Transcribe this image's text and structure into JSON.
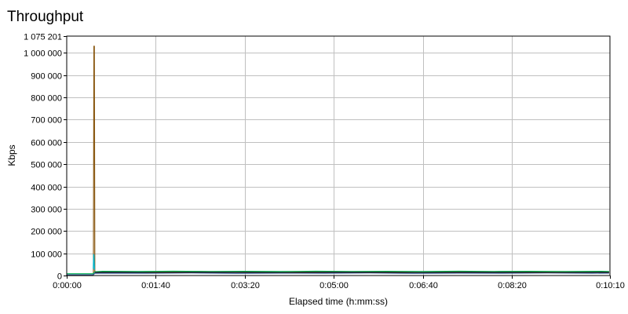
{
  "chart_data": {
    "type": "line",
    "title": "Throughput",
    "xlabel": "Elapsed time (h:mm:ss)",
    "ylabel": "Kbps",
    "x_unit": "seconds",
    "xlim": [
      0,
      610
    ],
    "ylim": [
      0,
      1075201
    ],
    "grid": true,
    "legend": "none",
    "x_ticks": [
      {
        "value": 0,
        "label": "0:00:00"
      },
      {
        "value": 100,
        "label": "0:01:40"
      },
      {
        "value": 200,
        "label": "0:03:20"
      },
      {
        "value": 300,
        "label": "0:05:00"
      },
      {
        "value": 400,
        "label": "0:06:40"
      },
      {
        "value": 500,
        "label": "0:08:20"
      },
      {
        "value": 610,
        "label": "0:10:10"
      }
    ],
    "y_ticks": [
      {
        "value": 0,
        "label": "0"
      },
      {
        "value": 100000,
        "label": "100 000"
      },
      {
        "value": 200000,
        "label": "200 000"
      },
      {
        "value": 300000,
        "label": "300 000"
      },
      {
        "value": 400000,
        "label": "400 000"
      },
      {
        "value": 500000,
        "label": "500 000"
      },
      {
        "value": 600000,
        "label": "600 000"
      },
      {
        "value": 700000,
        "label": "700 000"
      },
      {
        "value": 800000,
        "label": "800 000"
      },
      {
        "value": 900000,
        "label": "900 000"
      },
      {
        "value": 1000000,
        "label": "1 000 000"
      },
      {
        "value": 1075201,
        "label": "1 075 201"
      }
    ],
    "series": [
      {
        "color": "#8b5a14",
        "x": [
          0,
          30,
          30.5,
          31,
          31.6,
          32,
          40,
          60,
          100,
          150,
          200,
          250,
          300,
          350,
          400,
          450,
          500,
          550,
          600,
          609
        ],
        "y": [
          0,
          0,
          1030000,
          1030000,
          15000,
          16000,
          16500,
          17000,
          16000,
          17500,
          16500,
          17000,
          16000,
          17500,
          16500,
          17000,
          16500,
          17500,
          16500,
          17000
        ]
      },
      {
        "color": "#00b050",
        "x": [
          0,
          29.5,
          30,
          31.6,
          40,
          80,
          120,
          160,
          200,
          240,
          280,
          320,
          360,
          400,
          440,
          480,
          520,
          560,
          600,
          609
        ],
        "y": [
          8000,
          8000,
          9000,
          17000,
          19000,
          18000,
          19500,
          18500,
          19000,
          18000,
          19500,
          18500,
          19000,
          18000,
          19500,
          18500,
          19000,
          18500,
          19000,
          18500
        ]
      },
      {
        "color": "#2f5597",
        "x": [
          0,
          29.5,
          31.6,
          40,
          90,
          140,
          190,
          240,
          290,
          340,
          390,
          440,
          490,
          540,
          590,
          609
        ],
        "y": [
          3000,
          3000,
          10000,
          11000,
          10500,
          11500,
          10000,
          11000,
          10500,
          11500,
          10000,
          11000,
          10500,
          11500,
          10500,
          11000
        ]
      },
      {
        "color": "#00b8d4",
        "x": [
          29.8,
          30.3,
          30.6,
          31.2
        ],
        "y": [
          30000,
          95000,
          90000,
          25000
        ]
      },
      {
        "color": "#1a1a1a",
        "x": [
          31.6,
          60,
          100,
          150,
          200,
          250,
          300,
          350,
          400,
          450,
          500,
          550,
          600,
          609
        ],
        "y": [
          14000,
          14500,
          13500,
          14500,
          14000,
          13500,
          14500,
          14000,
          13500,
          14500,
          14000,
          13500,
          14500,
          14000
        ]
      }
    ]
  }
}
